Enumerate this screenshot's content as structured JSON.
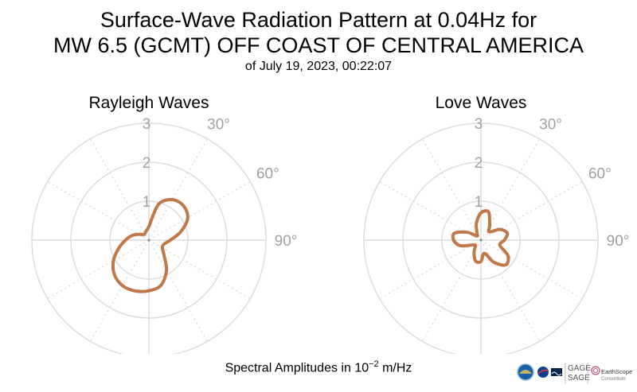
{
  "header": {
    "title_line1": "Surface-Wave Radiation Pattern at 0.04Hz for",
    "title_line2": "MW 6.5 (GCMT) OFF COAST OF CENTRAL AMERICA",
    "subtitle": "of July 19, 2023, 00:22:07"
  },
  "footer": {
    "prefix": "Spectral Amplitudes in 10",
    "exponent": "−2",
    "unit": " m/Hz"
  },
  "logos": {
    "gage": "GAGE",
    "sage": "SAGE",
    "earthscope": "EarthScope",
    "consortium": "Consortium"
  },
  "colors": {
    "pattern": "#c0784a",
    "grid": "#dcdcdc",
    "tick_label": "#a0a0a0"
  },
  "chart_data": [
    {
      "type": "polar-line",
      "title": "Rayleigh Waves",
      "radial_ticks": [
        "1",
        "2",
        "3"
      ],
      "radial_max": 3,
      "angle_tick_labels": [
        "30°",
        "60°",
        "90°"
      ],
      "angle_tick_values": [
        30,
        60,
        90
      ],
      "theta_deg": [
        0,
        15,
        30,
        45,
        60,
        75,
        90,
        105,
        120,
        135,
        150,
        165,
        180,
        195,
        210,
        225,
        240,
        255,
        270,
        285,
        300,
        315,
        330,
        345
      ],
      "r": [
        0.35,
        0.95,
        1.2,
        1.25,
        1.15,
        0.85,
        0.55,
        0.4,
        0.4,
        0.55,
        0.9,
        1.2,
        1.3,
        1.35,
        1.35,
        1.25,
        1.05,
        0.8,
        0.6,
        0.45,
        0.3,
        0.2,
        0.2,
        0.25
      ]
    },
    {
      "type": "polar-line",
      "title": "Love Waves",
      "radial_ticks": [
        "1",
        "2",
        "3"
      ],
      "radial_max": 3,
      "angle_tick_labels": [
        "30°",
        "60°",
        "90°"
      ],
      "angle_tick_values": [
        30,
        60,
        90
      ],
      "theta_deg": [
        0,
        15,
        30,
        45,
        60,
        75,
        90,
        105,
        120,
        135,
        150,
        165,
        180,
        195,
        210,
        225,
        240,
        255,
        270,
        285,
        300,
        315,
        330,
        345
      ],
      "r": [
        0.7,
        0.75,
        0.45,
        0.3,
        0.55,
        0.7,
        0.6,
        0.5,
        0.8,
        0.9,
        0.65,
        0.35,
        0.55,
        0.55,
        0.35,
        0.2,
        0.25,
        0.55,
        0.7,
        0.7,
        0.4,
        0.15,
        0.2,
        0.45
      ]
    }
  ]
}
